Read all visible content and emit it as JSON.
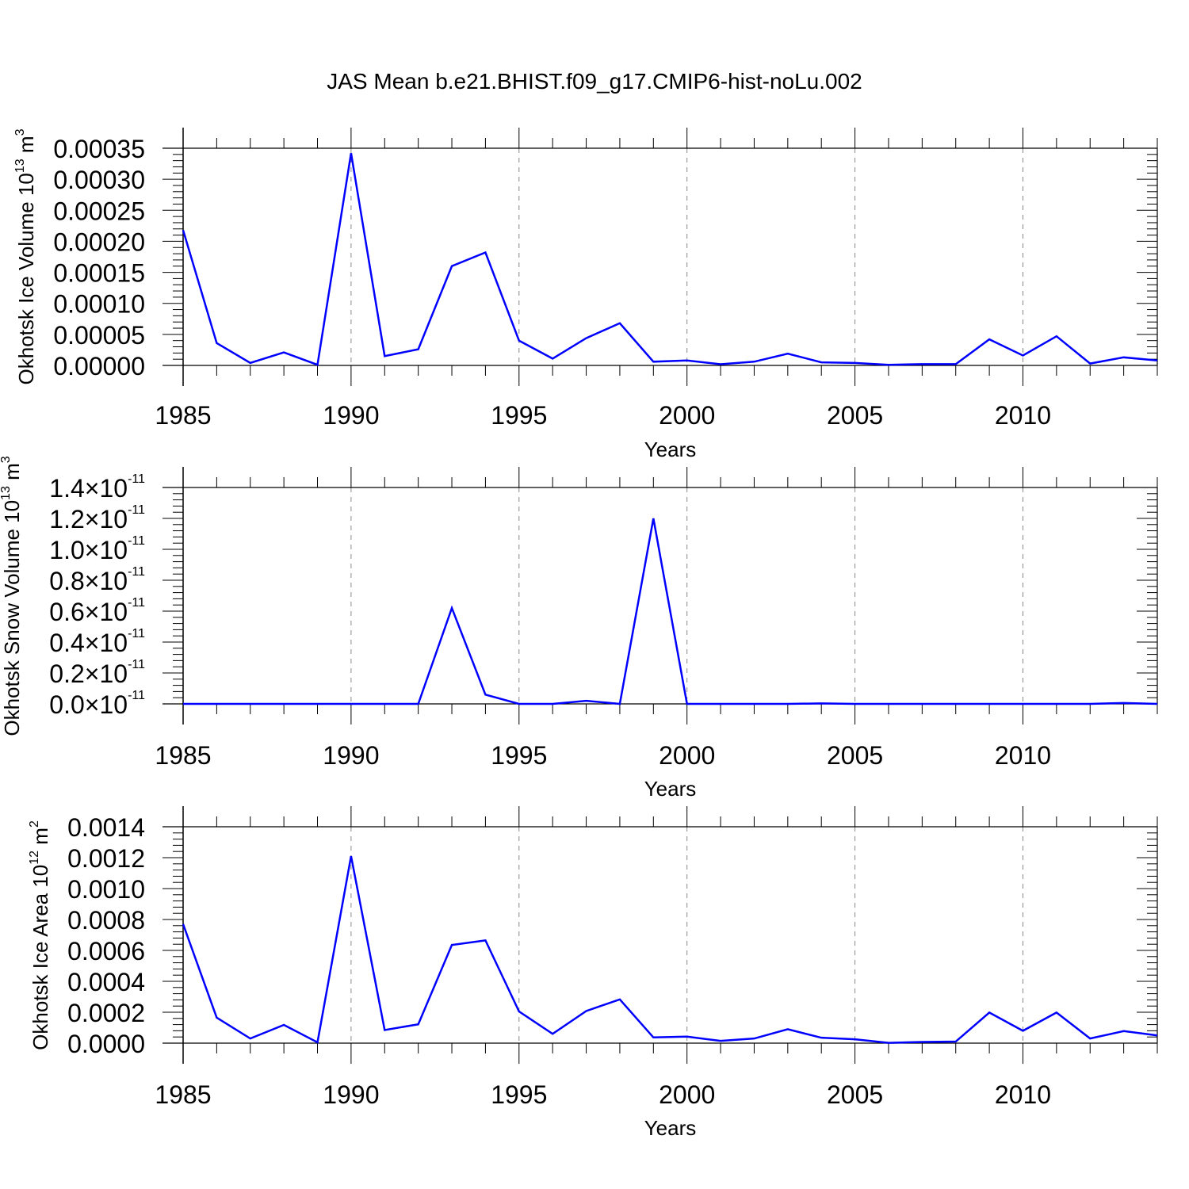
{
  "figure_title": "JAS Mean b.e21.BHIST.f09_g17.CMIP6-hist-noLu.002",
  "chart_data": [
    {
      "type": "line",
      "title": "",
      "xlabel": "Years",
      "ylabel": {
        "main": "Okhotsk Ice Volume 10",
        "exp": "13",
        "unit": " m",
        "unit_exp": "3"
      },
      "xlim": [
        1985,
        2014
      ],
      "ylim": [
        0,
        0.00035
      ],
      "x_ticks": [
        1985,
        1990,
        1995,
        2000,
        2005,
        2010
      ],
      "x_tick_labels": [
        "1985",
        "1990",
        "1995",
        "2000",
        "2005",
        "2010"
      ],
      "y_ticks": [
        0,
        5e-05,
        0.0001,
        0.00015,
        0.0002,
        0.00025,
        0.0003,
        0.00035
      ],
      "y_tick_labels": [
        "0.00000",
        "0.00005",
        "0.00010",
        "0.00015",
        "0.00020",
        "0.00025",
        "0.00030",
        "0.00035"
      ],
      "grid": "dashed vertical at major x ticks",
      "series": [
        {
          "name": "Ice Volume",
          "color": "#0000ff",
          "x": [
            1985,
            1986,
            1987,
            1988,
            1989,
            1990,
            1991,
            1992,
            1993,
            1994,
            1995,
            1996,
            1997,
            1998,
            1999,
            2000,
            2001,
            2002,
            2003,
            2004,
            2005,
            2006,
            2007,
            2008,
            2009,
            2010,
            2011,
            2012,
            2013,
            2014
          ],
          "values": [
            0.000218,
            3.6e-05,
            4e-06,
            2.1e-05,
            1e-06,
            0.000342,
            1.5e-05,
            2.6e-05,
            0.00016,
            0.000182,
            4e-05,
            1.1e-05,
            4.4e-05,
            6.8e-05,
            6e-06,
            8e-06,
            2e-06,
            6e-06,
            1.9e-05,
            5e-06,
            4e-06,
            1e-06,
            2e-06,
            2e-06,
            4.2e-05,
            1.6e-05,
            4.7e-05,
            3e-06,
            1.3e-05,
            8e-06
          ]
        }
      ]
    },
    {
      "type": "line",
      "title": "",
      "xlabel": "Years",
      "ylabel": {
        "main": "Okhotsk Snow Volume 10",
        "exp": "13",
        "unit": " m",
        "unit_exp": "3"
      },
      "xlim": [
        1985,
        2014
      ],
      "ylim": [
        0,
        1.4
      ],
      "y_scale_note": "values in units of 10^-11",
      "x_ticks": [
        1985,
        1990,
        1995,
        2000,
        2005,
        2010
      ],
      "x_tick_labels": [
        "1985",
        "1990",
        "1995",
        "2000",
        "2005",
        "2010"
      ],
      "y_ticks": [
        0,
        0.2,
        0.4,
        0.6,
        0.8,
        1.0,
        1.2,
        1.4
      ],
      "y_tick_labels": [
        "0.0×10",
        "0.2×10",
        "0.4×10",
        "0.6×10",
        "0.8×10",
        "1.0×10",
        "1.2×10",
        "1.4×10"
      ],
      "y_tick_exponent": "-11",
      "grid": "dashed vertical at major x ticks",
      "series": [
        {
          "name": "Snow Volume",
          "color": "#0000ff",
          "x": [
            1985,
            1986,
            1987,
            1988,
            1989,
            1990,
            1991,
            1992,
            1993,
            1994,
            1995,
            1996,
            1997,
            1998,
            1999,
            2000,
            2001,
            2002,
            2003,
            2004,
            2005,
            2006,
            2007,
            2008,
            2009,
            2010,
            2011,
            2012,
            2013,
            2014
          ],
          "values": [
            0,
            0,
            0,
            0,
            0,
            0,
            0,
            0,
            0.62,
            0.06,
            0,
            0,
            0.02,
            0,
            1.2,
            0,
            0,
            0,
            0,
            0.003,
            0,
            0,
            0,
            0,
            0,
            0,
            0,
            0,
            0.006,
            0
          ]
        }
      ]
    },
    {
      "type": "line",
      "title": "",
      "xlabel": "Years",
      "ylabel": {
        "main": "Okhotsk Ice Area 10",
        "exp": "12",
        "unit": " m",
        "unit_exp": "2"
      },
      "xlim": [
        1985,
        2014
      ],
      "ylim": [
        0,
        0.0014
      ],
      "x_ticks": [
        1985,
        1990,
        1995,
        2000,
        2005,
        2010
      ],
      "x_tick_labels": [
        "1985",
        "1990",
        "1995",
        "2000",
        "2005",
        "2010"
      ],
      "y_ticks": [
        0,
        0.0002,
        0.0004,
        0.0006,
        0.0008,
        0.001,
        0.0012,
        0.0014
      ],
      "y_tick_labels": [
        "0.0000",
        "0.0002",
        "0.0004",
        "0.0006",
        "0.0008",
        "0.0010",
        "0.0012",
        "0.0014"
      ],
      "grid": "dashed vertical at major x ticks",
      "series": [
        {
          "name": "Ice Area",
          "color": "#0000ff",
          "x": [
            1985,
            1986,
            1987,
            1988,
            1989,
            1990,
            1991,
            1992,
            1993,
            1994,
            1995,
            1996,
            1997,
            1998,
            1999,
            2000,
            2001,
            2002,
            2003,
            2004,
            2005,
            2006,
            2007,
            2008,
            2009,
            2010,
            2011,
            2012,
            2013,
            2014
          ],
          "values": [
            0.00077,
            0.000165,
            3e-05,
            0.000118,
            5e-06,
            0.00121,
            8.5e-05,
            0.000122,
            0.000635,
            0.000665,
            0.000205,
            6e-05,
            0.000208,
            0.000283,
            3.7e-05,
            4.2e-05,
            1.5e-05,
            3e-05,
            9e-05,
            3.5e-05,
            2.5e-05,
            2e-06,
            8e-06,
            1e-05,
            0.000198,
            8e-05,
            0.000198,
            3e-05,
            7.8e-05,
            5e-05
          ]
        }
      ]
    }
  ]
}
